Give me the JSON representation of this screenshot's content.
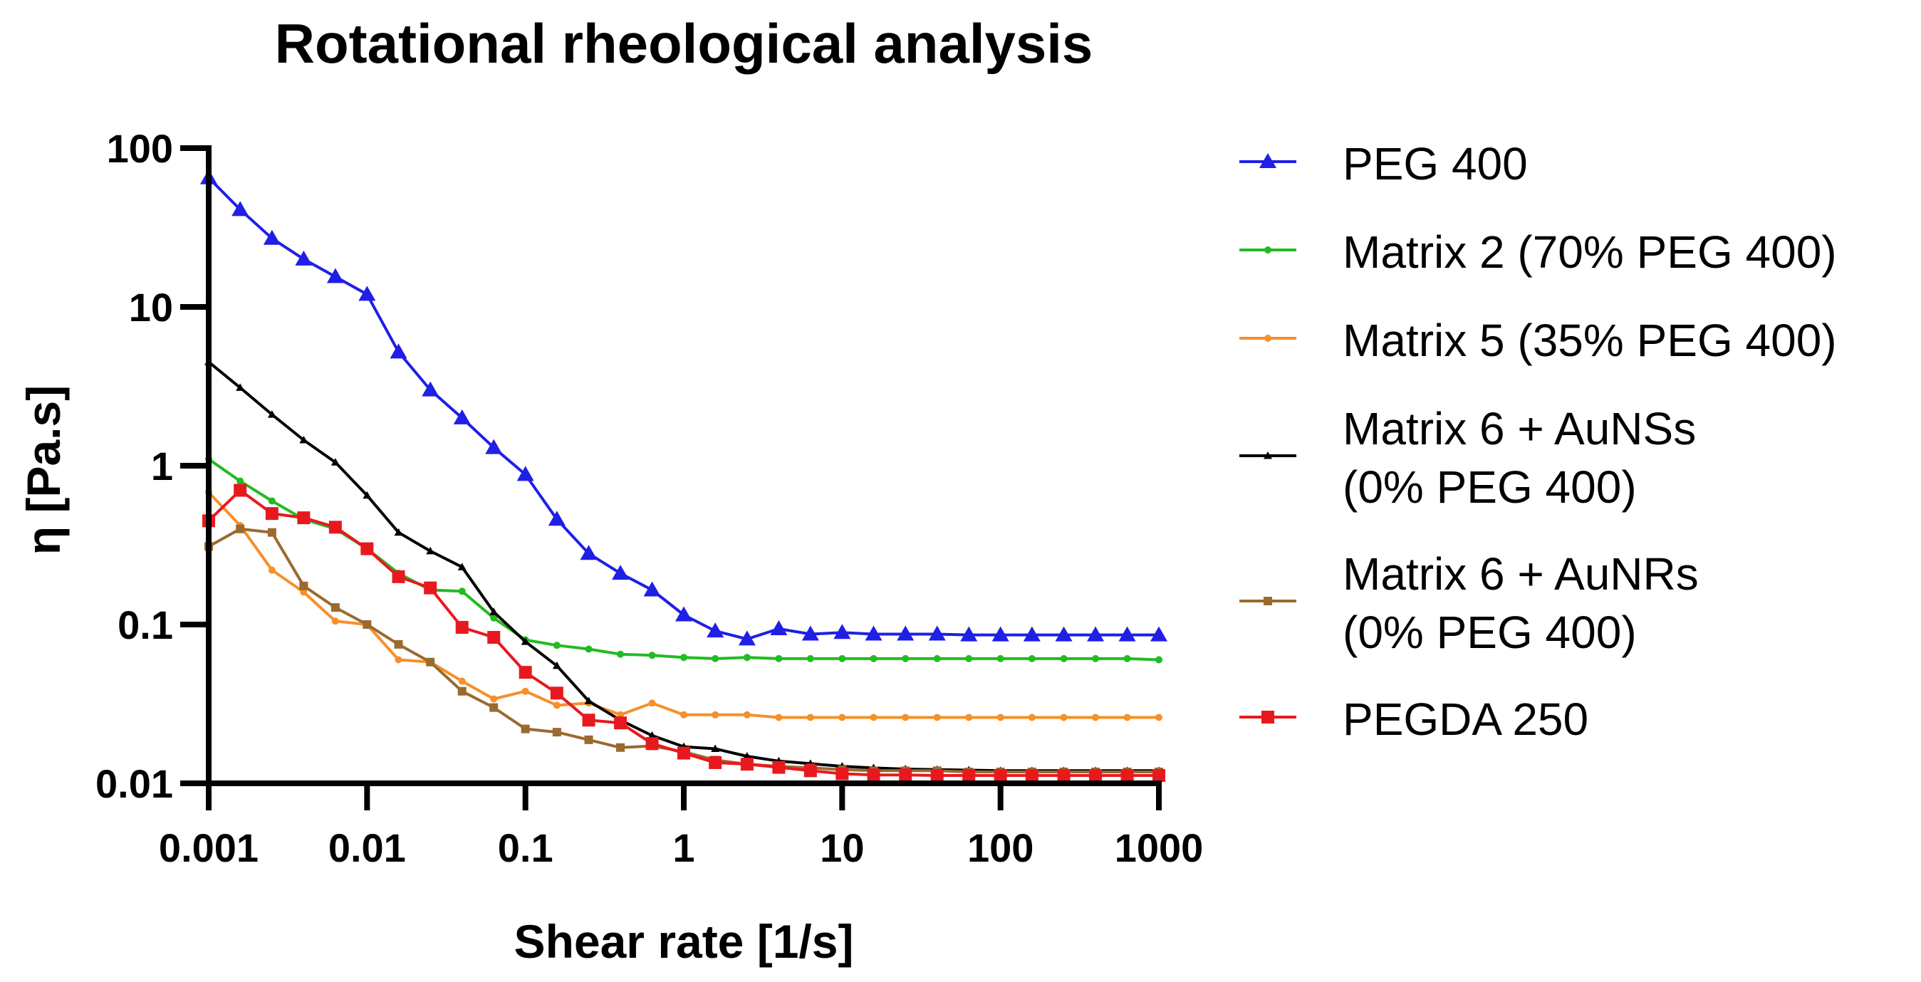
{
  "chart_data": {
    "type": "line",
    "title": "Rotational rheological analysis",
    "xlabel": "Shear rate [1/s]",
    "ylabel": "η [Pa.s]",
    "xscale": "log",
    "yscale": "log",
    "xlim": [
      0.001,
      1000
    ],
    "ylim": [
      0.01,
      100
    ],
    "xticks": [
      0.001,
      0.01,
      0.1,
      1,
      10,
      100,
      1000
    ],
    "xtick_labels": [
      "0.001",
      "0.01",
      "0.1",
      "1",
      "10",
      "100",
      "1000"
    ],
    "yticks": [
      0.01,
      0.1,
      1,
      10,
      100
    ],
    "ytick_labels": [
      "0.01",
      "0.1",
      "1",
      "10",
      "100"
    ],
    "legend_position": "right",
    "x": [
      0.001,
      0.00158,
      0.00251,
      0.00398,
      0.00631,
      0.01,
      0.0158,
      0.0251,
      0.0398,
      0.0631,
      0.1,
      0.158,
      0.251,
      0.398,
      0.631,
      1,
      1.58,
      2.51,
      3.98,
      6.31,
      10,
      15.8,
      25.1,
      39.8,
      63.1,
      100,
      158,
      251,
      398,
      631,
      1000
    ],
    "series": [
      {
        "name": "PEG 400",
        "legend_lines": [
          "PEG 400"
        ],
        "color": "#1f1fe6",
        "marker": "triangle",
        "values": [
          65,
          41,
          27,
          20,
          15.5,
          12,
          5.2,
          3.0,
          2.0,
          1.3,
          0.88,
          0.46,
          0.28,
          0.21,
          0.165,
          0.115,
          0.091,
          0.081,
          0.094,
          0.087,
          0.089,
          0.087,
          0.087,
          0.087,
          0.086,
          0.086,
          0.086,
          0.086,
          0.086,
          0.086,
          0.086
        ]
      },
      {
        "name": "Matrix 2 (70% PEG 400)",
        "legend_lines": [
          "Matrix 2 (70% PEG 400)"
        ],
        "color": "#22bb22",
        "marker": "dot",
        "values": [
          1.1,
          0.8,
          0.6,
          0.46,
          0.4,
          0.3,
          0.21,
          0.165,
          0.162,
          0.11,
          0.08,
          0.074,
          0.07,
          0.065,
          0.064,
          0.062,
          0.061,
          0.062,
          0.061,
          0.061,
          0.061,
          0.061,
          0.061,
          0.061,
          0.061,
          0.061,
          0.061,
          0.061,
          0.061,
          0.061,
          0.06
        ]
      },
      {
        "name": "Matrix 5 (35% PEG 400)",
        "legend_lines": [
          "Matrix 5 (35% PEG 400)"
        ],
        "color": "#f5902a",
        "marker": "dot",
        "values": [
          0.68,
          0.42,
          0.22,
          0.16,
          0.105,
          0.1,
          0.06,
          0.058,
          0.044,
          0.034,
          0.038,
          0.031,
          0.032,
          0.027,
          0.032,
          0.027,
          0.027,
          0.027,
          0.026,
          0.026,
          0.026,
          0.026,
          0.026,
          0.026,
          0.026,
          0.026,
          0.026,
          0.026,
          0.026,
          0.026,
          0.026
        ]
      },
      {
        "name": "Matrix 6 + AuNSs (0% PEG 400)",
        "legend_lines": [
          "Matrix 6 + AuNSs",
          "(0% PEG 400)"
        ],
        "color": "#000000",
        "marker": "triangle-small",
        "values": [
          4.5,
          3.1,
          2.1,
          1.45,
          1.05,
          0.65,
          0.38,
          0.29,
          0.23,
          0.12,
          0.078,
          0.055,
          0.033,
          0.025,
          0.02,
          0.017,
          0.0165,
          0.0148,
          0.0138,
          0.0133,
          0.0128,
          0.0125,
          0.0123,
          0.0122,
          0.0121,
          0.012,
          0.012,
          0.012,
          0.012,
          0.012,
          0.012
        ]
      },
      {
        "name": "Matrix 6 + AuNRs (0% PEG 400)",
        "legend_lines": [
          "Matrix 6 + AuNRs",
          "(0% PEG 400)"
        ],
        "color": "#9b6a2f",
        "marker": "square-small",
        "values": [
          0.31,
          0.4,
          0.38,
          0.175,
          0.128,
          0.1,
          0.075,
          0.058,
          0.038,
          0.03,
          0.022,
          0.021,
          0.0188,
          0.0168,
          0.0172,
          0.0158,
          0.014,
          0.0132,
          0.0128,
          0.0125,
          0.0122,
          0.012,
          0.012,
          0.012,
          0.0118,
          0.0118,
          0.0118,
          0.0118,
          0.0118,
          0.0118,
          0.0118
        ]
      },
      {
        "name": "PEGDA 250",
        "legend_lines": [
          "PEGDA 250"
        ],
        "color": "#e8191e",
        "marker": "square",
        "values": [
          0.45,
          0.7,
          0.5,
          0.47,
          0.41,
          0.3,
          0.2,
          0.17,
          0.096,
          0.083,
          0.05,
          0.037,
          0.025,
          0.024,
          0.0178,
          0.0155,
          0.0135,
          0.0132,
          0.0126,
          0.012,
          0.0115,
          0.0113,
          0.0113,
          0.0112,
          0.0112,
          0.0112,
          0.0112,
          0.0112,
          0.0112,
          0.0112,
          0.0112
        ]
      }
    ]
  }
}
